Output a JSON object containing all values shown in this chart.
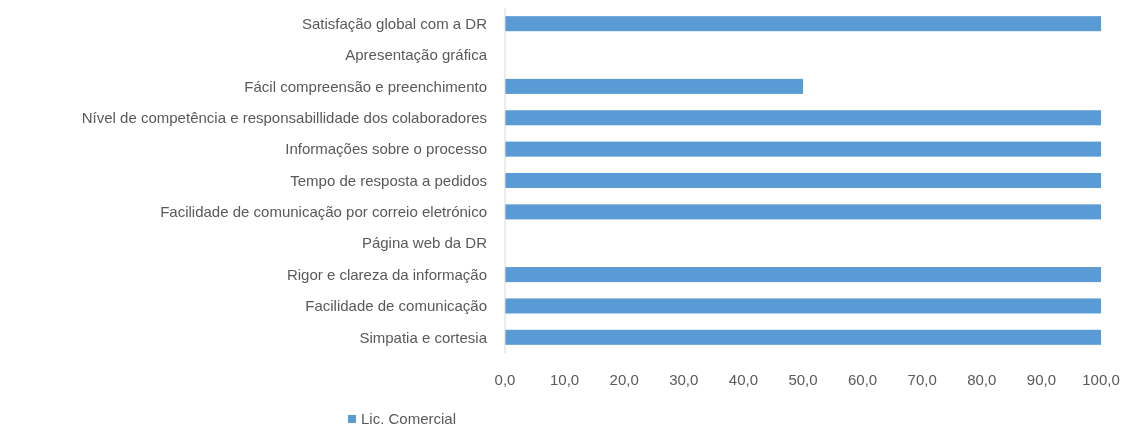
{
  "chart_data": {
    "type": "bar",
    "orientation": "horizontal",
    "categories": [
      "Satisfação global com a DR",
      "Apresentação gráfica",
      "Fácil compreensão e preenchimento",
      "Nível de competência e responsabillidade dos colaboradores",
      "Informações sobre o processo",
      "Tempo de resposta a pedidos",
      "Facilidade de comunicação por correio eletrónico",
      "Página web da DR",
      "Rigor e clareza da informação",
      "Facilidade de comunicação",
      "Simpatia e cortesia"
    ],
    "series": [
      {
        "name": "Lic. Comercial",
        "color": "#5b9bd5",
        "values": [
          100,
          null,
          50,
          100,
          100,
          100,
          100,
          null,
          100,
          100,
          100
        ]
      }
    ],
    "xlim": [
      0,
      100
    ],
    "xticks": [
      {
        "value": 0,
        "label": "0,0"
      },
      {
        "value": 10,
        "label": "10,0"
      },
      {
        "value": 20,
        "label": "20,0"
      },
      {
        "value": 30,
        "label": "30,0"
      },
      {
        "value": 40,
        "label": "40,0"
      },
      {
        "value": 50,
        "label": "50,0"
      },
      {
        "value": 60,
        "label": "60,0"
      },
      {
        "value": 70,
        "label": "70,0"
      },
      {
        "value": 80,
        "label": "80,0"
      },
      {
        "value": 90,
        "label": "90,0"
      },
      {
        "value": 100,
        "label": "100,0"
      }
    ],
    "grid": false,
    "legend": "bottom"
  }
}
